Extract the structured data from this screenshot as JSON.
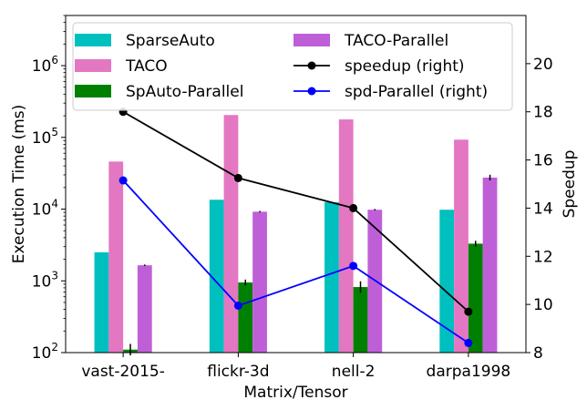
{
  "chart_data": {
    "type": "bar",
    "categories": [
      "vast-2015-",
      "flickr-3d",
      "nell-2",
      "darpa1998"
    ],
    "xlabel": "Matrix/Tensor",
    "ylabel": "Execution Time (ms)",
    "y2label": "Speedup",
    "yscale": "log",
    "ylim": [
      100,
      5000000
    ],
    "y2lim": [
      8,
      22
    ],
    "yticks": [
      {
        "v": 100,
        "b": "10",
        "e": "2"
      },
      {
        "v": 1000,
        "b": "10",
        "e": "3"
      },
      {
        "v": 10000,
        "b": "10",
        "e": "4"
      },
      {
        "v": 100000,
        "b": "10",
        "e": "5"
      },
      {
        "v": 1000000,
        "b": "10",
        "e": "6"
      }
    ],
    "y2ticks": [
      8,
      10,
      12,
      14,
      16,
      18,
      20
    ],
    "legend_position": "top",
    "series": [
      {
        "name": "SparseAuto",
        "kind": "bar",
        "color": "#00bfbf",
        "values": [
          2500,
          13500,
          12500,
          9800
        ]
      },
      {
        "name": "TACO",
        "kind": "bar",
        "color": "#e377c2",
        "values": [
          46000,
          205000,
          178000,
          93000
        ]
      },
      {
        "name": "SpAuto-Parallel",
        "kind": "bar",
        "color": "#008000",
        "values": [
          110,
          950,
          820,
          3300
        ],
        "err": [
          0.08,
          0.04,
          0.08,
          0.04
        ]
      },
      {
        "name": "TACO-Parallel",
        "kind": "bar",
        "color": "#bf5fd8",
        "values": [
          1650,
          9200,
          9800,
          27500
        ],
        "err": [
          0.01,
          0.01,
          0.01,
          0.04
        ]
      },
      {
        "name": "speedup (right)",
        "kind": "line",
        "axis": "right",
        "color": "#000000",
        "values": [
          18.0,
          15.25,
          14.0,
          9.7
        ]
      },
      {
        "name": "spd-Parallel (right)",
        "kind": "line",
        "axis": "right",
        "color": "#0000ff",
        "values": [
          15.15,
          9.95,
          11.6,
          8.4
        ]
      }
    ]
  }
}
